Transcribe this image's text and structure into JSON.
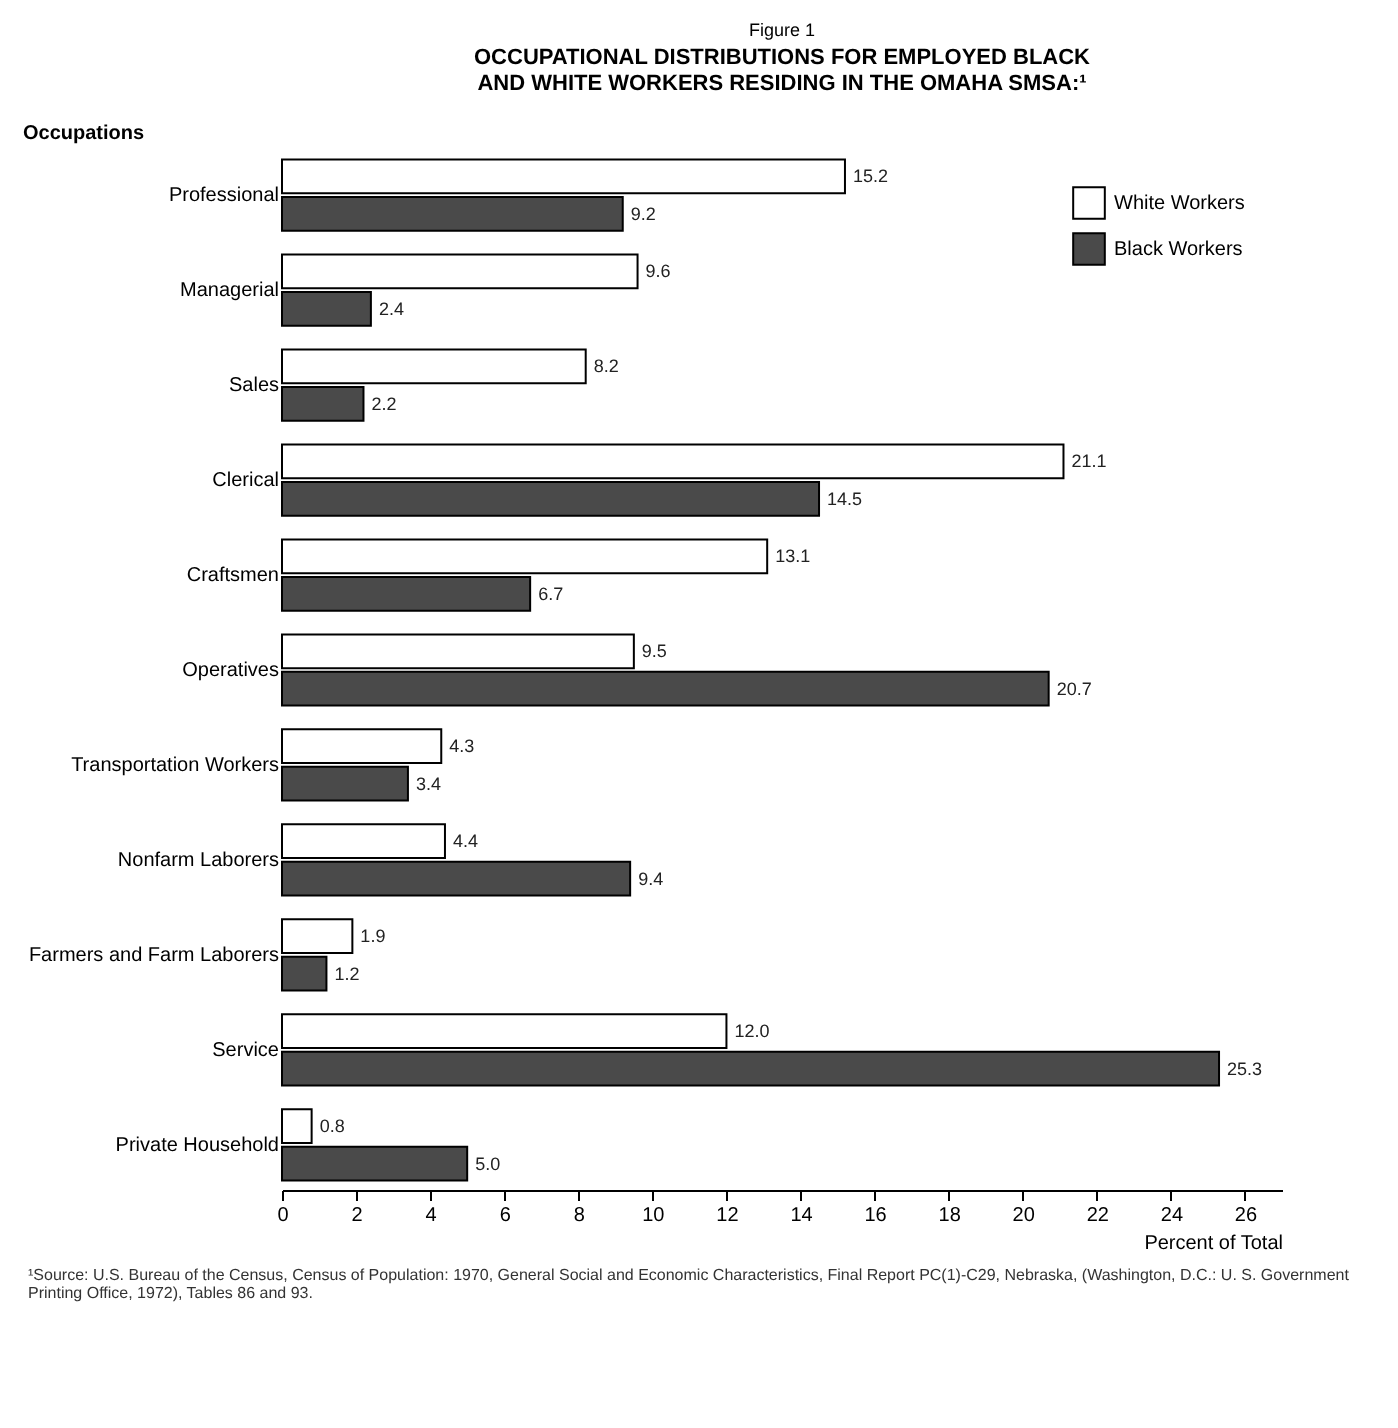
{
  "chart_data": {
    "type": "bar",
    "orientation": "horizontal",
    "title": "Figure 1",
    "subtitle": "OCCUPATIONAL DISTRIBUTIONS FOR EMPLOYED BLACK AND WHITE WORKERS RESIDING IN THE OMAHA SMSA:¹",
    "ylabel": "Occupations",
    "xlabel": "Percent of Total",
    "categories": [
      "Professional",
      "Managerial",
      "Sales",
      "Clerical",
      "Craftsmen",
      "Operatives",
      "Transportation Workers",
      "Nonfarm Laborers",
      "Farmers and Farm Laborers",
      "Service",
      "Private Household"
    ],
    "series": [
      {
        "name": "White Workers",
        "color": "#ffffff",
        "values": [
          15.2,
          9.6,
          8.2,
          21.1,
          13.1,
          9.5,
          4.3,
          4.4,
          1.9,
          12.0,
          0.8
        ]
      },
      {
        "name": "Black Workers",
        "color": "#4a4a4a",
        "values": [
          9.2,
          2.4,
          2.2,
          14.5,
          6.7,
          20.7,
          3.4,
          9.4,
          1.2,
          25.3,
          5.0
        ]
      }
    ],
    "xlim": [
      0,
      27
    ],
    "xticks": [
      0,
      2,
      4,
      6,
      8,
      10,
      12,
      14,
      16,
      18,
      20,
      22,
      24,
      26
    ],
    "grid": false,
    "legend": "top right",
    "value_labels": [
      [
        "15.2",
        "9.6",
        "8.2",
        "21.1",
        "13.1",
        "9.5",
        "4.3",
        "4.4",
        "1.9",
        "12.0",
        "0.8"
      ],
      [
        "9.2",
        "2.4",
        "2.2",
        "14.5",
        "6.7",
        "20.7",
        "3.4",
        "9.4",
        "1.2",
        "25.3",
        "5.0"
      ]
    ],
    "annotations": [
      "¹Source: U.S. Bureau of the Census, Census of Population: 1970, General Social and Economic Characteristics, Final Report PC(1)-C29, Nebraska, (Washington, D.C.: U. S. Government Printing Office, 1972), Tables 86 and 93."
    ]
  }
}
